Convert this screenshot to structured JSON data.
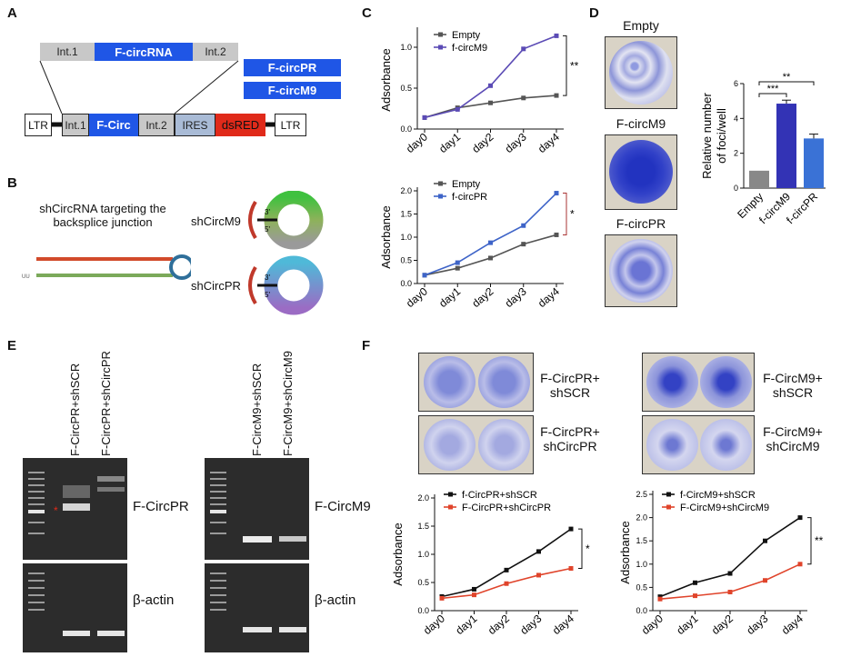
{
  "panelA": {
    "label": "A",
    "construct_top": {
      "intron1": "Int.1",
      "circ": "F-circRNA",
      "intron2": "Int.2"
    },
    "variants": [
      "F-circPR",
      "F-circM9"
    ],
    "vector": {
      "ltr_left": "LTR",
      "intron1": "Int.1",
      "circ": "F-Circ",
      "intron2": "Int.2",
      "ires": "IRES",
      "reporter": "dsRED",
      "ltr_right": "LTR"
    }
  },
  "panelB": {
    "label": "B",
    "description": "shCircRNA targeting the backsplice junction",
    "hairpin_end": "UU",
    "sh1": "shCircM9",
    "sh2": "shCircPR",
    "end3": "3'",
    "end5": "5'"
  },
  "panelC": {
    "label": "C"
  },
  "panelD": {
    "label": "D",
    "dishes": [
      "Empty",
      "F-circM9",
      "F-circPR"
    ],
    "stats": [
      "***",
      "**"
    ]
  },
  "panelE": {
    "label": "E",
    "left_lanes": [
      "F-CircPR+shSCR",
      "F-CircPR+shCircPR"
    ],
    "right_lanes": [
      "F-CircM9+shSCR",
      "F-CircM9+shCircM9"
    ],
    "left_target": "F-CircPR",
    "right_target": "F-CircM9",
    "loading": "β-actin",
    "marker": "*"
  },
  "panelF": {
    "label": "F",
    "plates": [
      "F-CircPR+ shSCR",
      "F-CircPR+ shCircPR",
      "F-CircM9+ shSCR",
      "F-CircM9+ shCircM9"
    ]
  },
  "chart_data": [
    {
      "id": "C-top",
      "type": "line",
      "x": [
        "day0",
        "day1",
        "day2",
        "day3",
        "day4"
      ],
      "ylabel": "Adsorbance",
      "ylim": [
        0,
        1.2
      ],
      "yticks": [
        "0.0",
        "0.5",
        "1.0"
      ],
      "series": [
        {
          "name": "Empty",
          "values": [
            0.14,
            0.26,
            0.32,
            0.38,
            0.41
          ],
          "color": "#555555"
        },
        {
          "name": "f-circM9",
          "values": [
            0.14,
            0.24,
            0.53,
            0.98,
            1.14
          ],
          "color": "#5b4bb5"
        }
      ],
      "annotation": "**"
    },
    {
      "id": "C-bottom",
      "type": "line",
      "x": [
        "day0",
        "day1",
        "day2",
        "day3",
        "day4"
      ],
      "ylabel": "Adsorbance",
      "ylim": [
        0,
        2.0
      ],
      "yticks": [
        "0.0",
        "0.5",
        "1.0",
        "1.5",
        "2.0"
      ],
      "series": [
        {
          "name": "Empty",
          "values": [
            0.18,
            0.33,
            0.55,
            0.85,
            1.05
          ],
          "color": "#555555"
        },
        {
          "name": "f-circPR",
          "values": [
            0.18,
            0.45,
            0.88,
            1.25,
            1.95
          ],
          "color": "#3e64c8"
        }
      ],
      "annotation": "*"
    },
    {
      "id": "D-bar",
      "type": "bar",
      "categories": [
        "Empty",
        "f-circM9",
        "f-circPR"
      ],
      "values": [
        1.0,
        4.85,
        2.85
      ],
      "errors": [
        0,
        0.2,
        0.25
      ],
      "colors": [
        "#888888",
        "#3333b5",
        "#3a72d6"
      ],
      "ylabel": "Relative number of foci/well",
      "ylim": [
        0,
        6
      ],
      "yticks": [
        "0",
        "2",
        "4",
        "6"
      ]
    },
    {
      "id": "F-left",
      "type": "line",
      "x": [
        "day0",
        "day1",
        "day2",
        "day3",
        "day4"
      ],
      "ylabel": "Adsorbance",
      "ylim": [
        0,
        2.0
      ],
      "yticks": [
        "0.0",
        "0.5",
        "1.0",
        "1.5",
        "2.0"
      ],
      "series": [
        {
          "name": "f-CircPR+shSCR",
          "values": [
            0.25,
            0.38,
            0.72,
            1.05,
            1.45
          ],
          "color": "#111111"
        },
        {
          "name": "F-CircPR+shCircPR",
          "values": [
            0.22,
            0.28,
            0.48,
            0.63,
            0.75
          ],
          "color": "#e0442b"
        }
      ],
      "annotation": "*"
    },
    {
      "id": "F-right",
      "type": "line",
      "x": [
        "day0",
        "day1",
        "day2",
        "day3",
        "day4"
      ],
      "ylabel": "Adsorbance",
      "ylim": [
        0,
        2.5
      ],
      "yticks": [
        "0.0",
        "0.5",
        "1.0",
        "1.5",
        "2.0",
        "2.5"
      ],
      "series": [
        {
          "name": "f-CircM9+shSCR",
          "values": [
            0.3,
            0.6,
            0.8,
            1.5,
            2.0
          ],
          "color": "#111111"
        },
        {
          "name": "F-CircM9+shCircM9",
          "values": [
            0.25,
            0.32,
            0.4,
            0.65,
            1.0
          ],
          "color": "#e0442b"
        }
      ],
      "annotation": "**"
    }
  ]
}
